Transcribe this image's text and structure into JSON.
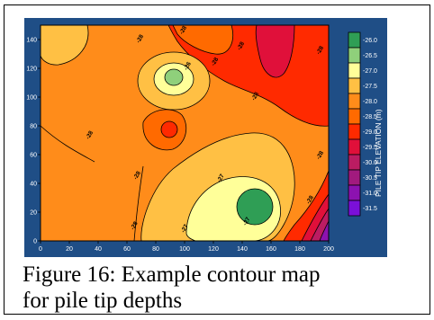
{
  "caption": {
    "line1": "Figure 16: Example contour map",
    "line2": "for pile tip depths"
  },
  "chart_data": {
    "type": "heatmap",
    "xlim": [
      0,
      200
    ],
    "ylim": [
      0,
      150
    ],
    "x_ticks": [
      "0",
      "20",
      "40",
      "60",
      "80",
      "100",
      "120",
      "140",
      "160",
      "180",
      "200"
    ],
    "y_ticks": [
      "0",
      "20",
      "40",
      "60",
      "80",
      "100",
      "120",
      "140"
    ],
    "colorbar": {
      "label": "PILE TIP ELEVATION (m)",
      "levels": [
        "-26.0",
        "-26.5",
        "-27.0",
        "-27.5",
        "-28.0",
        "-28.5",
        "-29.0",
        "-29.5",
        "-30.0",
        "-30.5",
        "-31.0",
        "-31.5"
      ],
      "colors": [
        "#2f9e55",
        "#8fd07b",
        "#ffff99",
        "#ffc044",
        "#ff8c1a",
        "#ff6a00",
        "#ff2a00",
        "#e0103a",
        "#bb1c62",
        "#a11a7e",
        "#8c12b0",
        "#7a10d8"
      ]
    },
    "contour_labels": [
      {
        "text": "-28",
        "x": 35,
        "y": 73
      },
      {
        "text": "-28",
        "x": 70,
        "y": 140
      },
      {
        "text": "-28",
        "x": 100,
        "y": 146
      },
      {
        "text": "-28",
        "x": 140,
        "y": 135
      },
      {
        "text": "-28",
        "x": 122,
        "y": 124
      },
      {
        "text": "-28",
        "x": 150,
        "y": 100
      },
      {
        "text": "-28",
        "x": 195,
        "y": 132
      },
      {
        "text": "-28",
        "x": 68,
        "y": 45
      },
      {
        "text": "-28",
        "x": 66,
        "y": 10
      },
      {
        "text": "-27",
        "x": 126,
        "y": 43
      },
      {
        "text": "-27",
        "x": 101,
        "y": 8
      },
      {
        "text": "-27",
        "x": 144,
        "y": 13
      },
      {
        "text": "-28",
        "x": 195,
        "y": 59
      },
      {
        "text": "-28",
        "x": 188,
        "y": 28
      },
      {
        "text": "-26",
        "x": 103,
        "y": 121
      }
    ],
    "colors": {
      "background": "#1f4e86",
      "plot_base": "#ff8c1a"
    }
  }
}
